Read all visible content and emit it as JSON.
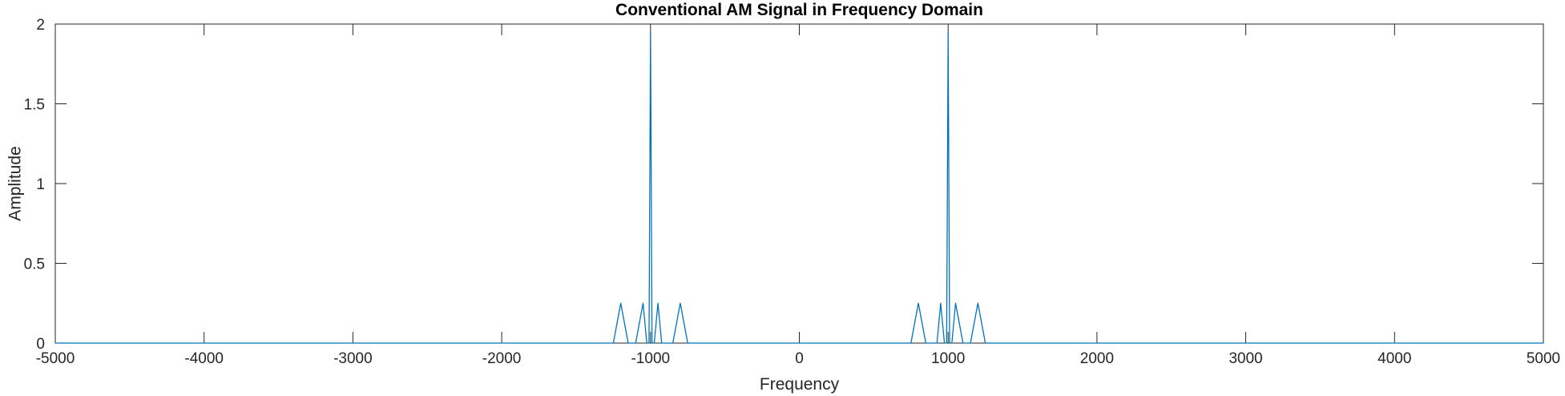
{
  "chart_data": {
    "type": "line",
    "title": "Conventional AM Signal in Frequency Domain",
    "xlabel": "Frequency",
    "ylabel": "Amplitude",
    "xlim": [
      -5000,
      5000
    ],
    "ylim": [
      0,
      2
    ],
    "xticks": [
      -5000,
      -4000,
      -3000,
      -2000,
      -1000,
      0,
      1000,
      2000,
      3000,
      4000,
      5000
    ],
    "yticks": [
      0,
      0.5,
      1,
      1.5,
      2
    ],
    "grid": false,
    "series": [
      {
        "color": "#0072BD",
        "x": [
          -5000,
          -1250,
          -1200,
          -1150,
          -1100,
          -1050,
          -1025,
          -1010,
          -1000,
          -990,
          -975,
          -950,
          -925,
          -850,
          -800,
          -750,
          750,
          800,
          850,
          925,
          950,
          975,
          990,
          1000,
          1010,
          1025,
          1050,
          1100,
          1150,
          1200,
          1250,
          5000
        ],
        "y": [
          0,
          0,
          0.25,
          0,
          0,
          0.25,
          0,
          0,
          1.95,
          0,
          0,
          0.25,
          0,
          0,
          0.25,
          0,
          0,
          0.25,
          0,
          0,
          0.25,
          0,
          0,
          1.95,
          0,
          0,
          0.25,
          0,
          0,
          0.25,
          0,
          0
        ]
      }
    ]
  }
}
